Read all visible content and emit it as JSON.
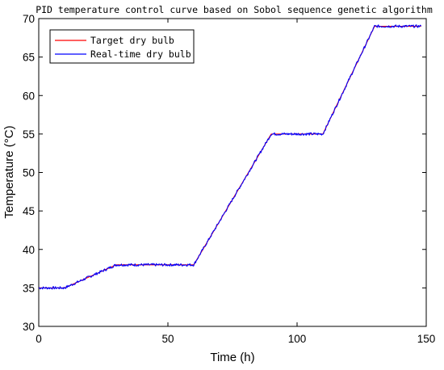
{
  "chart_data": {
    "type": "line",
    "title": "PID temperature control curve based on Sobol sequence genetic algorithm",
    "xlabel": "Time (h)",
    "ylabel": "Temperature (°C)",
    "xlim": [
      0,
      150
    ],
    "ylim": [
      30,
      70
    ],
    "xticks": [
      0,
      50,
      100,
      150
    ],
    "yticks": [
      30,
      35,
      40,
      45,
      50,
      55,
      60,
      65,
      70
    ],
    "grid": false,
    "legend_position": "top-left",
    "series": [
      {
        "name": "Target dry bulb",
        "color": "#ff0000",
        "x": [
          0,
          10,
          30,
          60,
          90,
          110,
          130,
          148
        ],
        "y": [
          35,
          35,
          38,
          38,
          55,
          55,
          69,
          69
        ]
      },
      {
        "name": "Real-time dry bulb",
        "color": "#0000ff",
        "x": [
          0,
          10,
          30,
          60,
          90,
          110,
          130,
          148
        ],
        "y": [
          35,
          35,
          38,
          38,
          55,
          55,
          69,
          69
        ]
      }
    ]
  }
}
